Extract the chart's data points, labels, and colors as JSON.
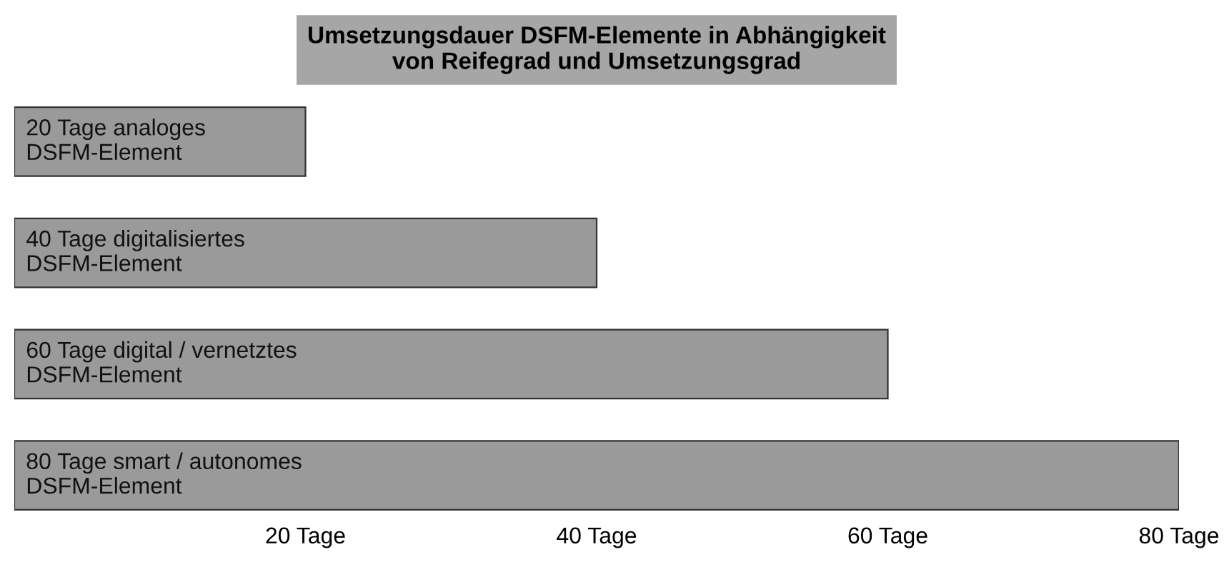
{
  "chart_data": {
    "type": "bar",
    "orientation": "horizontal",
    "title": "Umsetzungsdauer DSFM-Elemente in Abhängigkeit\nvon Reifegrad und Umsetzungsgrad",
    "categories": [
      "20 Tage analoges\nDSFM-Element",
      "40 Tage digitalisiertes\nDSFM-Element",
      "60 Tage digital / vernetztes\nDSFM-Element",
      "80 Tage smart / autonomes\nDSFM-Element"
    ],
    "values": [
      20,
      40,
      60,
      80
    ],
    "color": "#9a9a9a",
    "xlim": [
      0,
      80
    ],
    "xticks": [
      {
        "value": 20,
        "label": "20 Tage"
      },
      {
        "value": 40,
        "label": "40 Tage"
      },
      {
        "value": 60,
        "label": "60 Tage"
      },
      {
        "value": 80,
        "label": "80 Tage"
      }
    ],
    "tick_labels": "x",
    "grid": false,
    "legend": false
  }
}
